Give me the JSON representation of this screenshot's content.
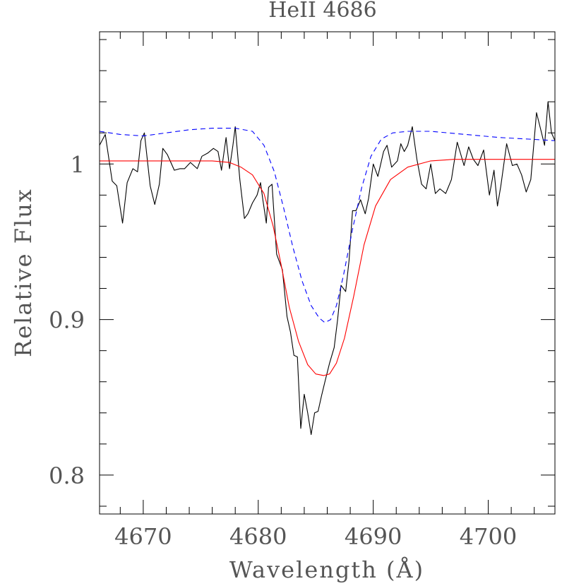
{
  "chart_data": {
    "type": "line",
    "title": "HeII 4686",
    "xlabel": "Wavelength (Å)",
    "ylabel": "Relative Flux",
    "xlim": [
      4666.2,
      4705.8
    ],
    "ylim": [
      0.775,
      1.085
    ],
    "x_major_ticks": [
      4670,
      4680,
      4690,
      4700
    ],
    "x_tick_labels": [
      "4670",
      "4680",
      "4690",
      "4700"
    ],
    "y_major_ticks": [
      0.8,
      0.9,
      1.0
    ],
    "y_tick_labels": [
      "0.8",
      "0.9",
      "1"
    ],
    "x_minor_step": 2,
    "y_minor_step": 0.02,
    "grid": false,
    "legend": "none",
    "series": [
      {
        "color": "#000000",
        "style": "solid",
        "x": [
          4666.2,
          4666.7,
          4667.3,
          4667.7,
          4668.2,
          4668.6,
          4669.1,
          4669.5,
          4669.8,
          4670.1,
          4670.6,
          4671.0,
          4671.4,
          4671.7,
          4672.1,
          4672.7,
          4673.2,
          4673.6,
          4674.1,
          4674.7,
          4675.1,
          4675.6,
          4676.1,
          4676.5,
          4676.8,
          4677.2,
          4677.5,
          4677.8,
          4678.0,
          4678.4,
          4678.8,
          4679.1,
          4679.5,
          4679.9,
          4680.2,
          4680.4,
          4680.7,
          4680.9,
          4681.2,
          4681.6,
          4682.1,
          4682.5,
          4682.8,
          4683.1,
          4683.4,
          4683.7,
          4684.0,
          4684.3,
          4684.6,
          4684.9,
          4685.2,
          4685.5,
          4685.8,
          4686.2,
          4686.6,
          4686.9,
          4687.2,
          4687.6,
          4687.9,
          4688.2,
          4688.5,
          4688.9,
          4689.3,
          4689.6,
          4690.0,
          4690.4,
          4690.9,
          4691.2,
          4691.6,
          4692.1,
          4692.4,
          4692.7,
          4693.0,
          4693.4,
          4693.8,
          4694.2,
          4694.6,
          4695.0,
          4695.4,
          4695.8,
          4696.3,
          4696.8,
          4697.3,
          4697.9,
          4698.3,
          4698.7,
          4699.1,
          4699.6,
          4700.1,
          4700.5,
          4700.8,
          4701.1,
          4701.6,
          4702.1,
          4702.5,
          4702.9,
          4703.3,
          4703.7,
          4704.2,
          4704.6,
          4704.9,
          4705.2,
          4705.5,
          4705.8
        ],
        "y": [
          1.012,
          1.019,
          0.989,
          0.986,
          0.962,
          0.988,
          0.997,
          0.995,
          1.015,
          1.02,
          0.986,
          0.974,
          0.987,
          1.01,
          1.006,
          0.996,
          0.997,
          0.997,
          1.001,
          0.997,
          1.005,
          1.007,
          1.01,
          1.008,
          0.996,
          1.017,
          0.997,
          1.012,
          1.024,
          0.99,
          0.965,
          0.968,
          0.975,
          0.98,
          0.988,
          0.977,
          0.962,
          0.985,
          0.987,
          0.942,
          0.932,
          0.902,
          0.892,
          0.877,
          0.876,
          0.83,
          0.852,
          0.84,
          0.826,
          0.84,
          0.841,
          0.851,
          0.86,
          0.872,
          0.882,
          0.9,
          0.922,
          0.918,
          0.938,
          0.97,
          0.97,
          0.977,
          0.968,
          0.978,
          1.0,
          0.992,
          1.008,
          1.012,
          0.998,
          1.002,
          1.013,
          1.008,
          1.012,
          1.024,
          1.003,
          0.987,
          0.984,
          1.0,
          0.981,
          0.984,
          0.981,
          0.99,
          1.014,
          0.999,
          1.011,
          1.003,
          0.999,
          1.009,
          0.98,
          0.996,
          0.973,
          0.986,
          1.013,
          0.999,
          1.0,
          0.993,
          0.982,
          0.99,
          1.033,
          1.021,
          1.012,
          1.04,
          1.02,
          1.015
        ]
      },
      {
        "color": "#ff0000",
        "style": "solid",
        "x": [
          4666.2,
          4670,
          4674,
          4676,
          4677.5,
          4678.5,
          4679.5,
          4680.5,
          4681.3,
          4682.0,
          4682.7,
          4683.5,
          4684.3,
          4685.0,
          4685.7,
          4686.2,
          4686.8,
          4687.5,
          4688.3,
          4689.2,
          4690.2,
          4691.5,
          4693.0,
          4695.0,
          4697.0,
          4700.0,
          4703.0,
          4705.8
        ],
        "y": [
          1.002,
          1.002,
          1.002,
          1.002,
          1.001,
          0.998,
          0.993,
          0.981,
          0.96,
          0.935,
          0.908,
          0.886,
          0.871,
          0.865,
          0.864,
          0.865,
          0.872,
          0.888,
          0.915,
          0.948,
          0.973,
          0.99,
          0.998,
          1.002,
          1.003,
          1.003,
          1.003,
          1.003
        ]
      },
      {
        "color": "#0000ff",
        "style": "dashed",
        "x": [
          4666.2,
          4668,
          4670,
          4672,
          4674,
          4676,
          4678,
          4679.5,
          4680.5,
          4681.4,
          4682.2,
          4683.0,
          4683.8,
          4684.6,
          4685.3,
          4685.8,
          4686.3,
          4686.8,
          4687.4,
          4688.2,
          4689.0,
          4689.8,
          4690.7,
          4691.7,
          4693.0,
          4695.0,
          4698.0,
          4701.0,
          4703.5,
          4705.8
        ],
        "y": [
          1.021,
          1.019,
          1.018,
          1.02,
          1.022,
          1.023,
          1.023,
          1.021,
          1.012,
          0.995,
          0.972,
          0.947,
          0.925,
          0.909,
          0.901,
          0.898,
          0.9,
          0.909,
          0.928,
          0.958,
          0.985,
          1.005,
          1.016,
          1.02,
          1.021,
          1.021,
          1.019,
          1.017,
          1.016,
          1.015
        ]
      }
    ]
  }
}
